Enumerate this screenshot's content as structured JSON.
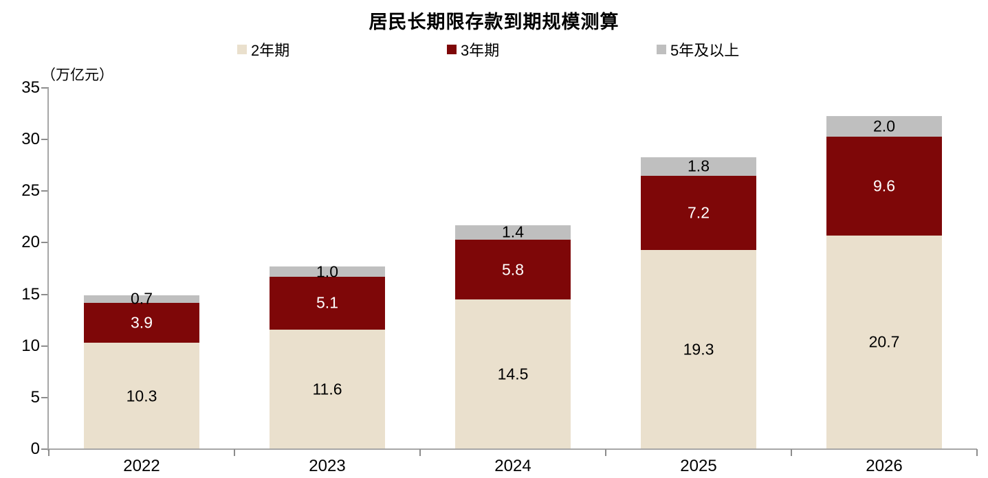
{
  "chart_data": {
    "type": "bar",
    "stacked": true,
    "title": "居民长期限存款到期规模测算",
    "unit_label": "（万亿元）",
    "categories": [
      "2022",
      "2023",
      "2024",
      "2025",
      "2026"
    ],
    "series": [
      {
        "name": "2年期",
        "color": "#eae0cd",
        "label_color": "#000000",
        "values": [
          10.3,
          11.6,
          14.5,
          19.3,
          20.7
        ]
      },
      {
        "name": "3年期",
        "color": "#7e0708",
        "label_color": "#ffffff",
        "values": [
          3.9,
          5.1,
          5.8,
          7.2,
          9.6
        ]
      },
      {
        "name": "5年及以上",
        "color": "#bfbfbf",
        "label_color": "#000000",
        "values": [
          0.7,
          1.0,
          1.4,
          1.8,
          2.0
        ]
      }
    ],
    "ylim": [
      0,
      35
    ],
    "yticks": [
      0,
      5,
      10,
      15,
      20,
      25,
      30,
      35
    ],
    "legend_position": "top",
    "grid": false
  },
  "colors": {
    "axis": "#a6a6a6",
    "tick": "#8c8c8c",
    "text": "#000000",
    "background": "#ffffff"
  }
}
